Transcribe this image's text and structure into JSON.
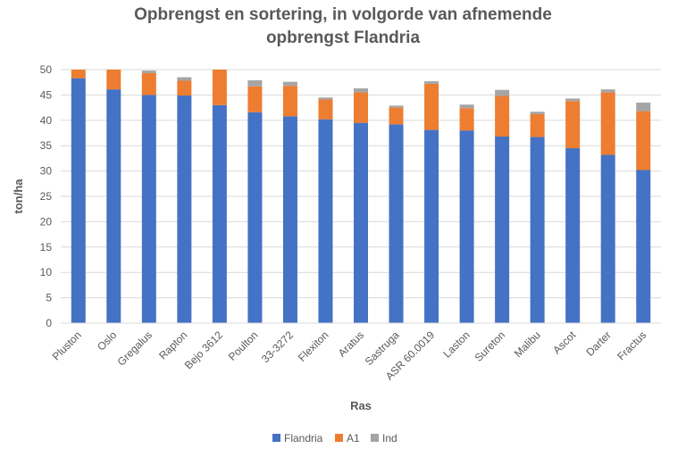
{
  "chart_data": {
    "type": "bar",
    "stacked": true,
    "title_lines": [
      "Opbrengst en sortering, in volgorde van afnemende",
      "opbrengst Flandria"
    ],
    "xlabel": "Ras",
    "ylabel": "ton/ha",
    "ylim": [
      0,
      50
    ],
    "yticks": [
      0,
      5,
      10,
      15,
      20,
      25,
      30,
      35,
      40,
      45,
      50
    ],
    "grid": true,
    "legend_position": "bottom",
    "categories": [
      "Pluston",
      "Oslo",
      "Gregalus",
      "Rapton",
      "Bejo 3612",
      "Poulton",
      "33-3272",
      "Flexiton",
      "Aratus",
      "Sastruga",
      "ASR 60.0019",
      "Laston",
      "Sureton",
      "Malibu",
      "Ascot",
      "Darter",
      "Fractus"
    ],
    "series": [
      {
        "name": "Flandria",
        "color": "#4472C4",
        "values": [
          48.3,
          46.1,
          45.0,
          44.9,
          43.0,
          41.6,
          40.8,
          40.2,
          39.5,
          39.2,
          38.1,
          38.0,
          36.8,
          36.7,
          34.5,
          33.2,
          30.2
        ]
      },
      {
        "name": "A1",
        "color": "#ED7D31",
        "values": [
          3.0,
          4.5,
          4.3,
          2.9,
          7.0,
          5.1,
          6.0,
          3.9,
          6.0,
          3.3,
          9.1,
          4.4,
          8.0,
          4.5,
          9.3,
          12.3,
          11.6
        ]
      },
      {
        "name": "Ind",
        "color": "#A5A5A5",
        "values": [
          0.0,
          0.0,
          0.5,
          0.7,
          0.0,
          1.2,
          0.8,
          0.4,
          0.8,
          0.4,
          0.5,
          0.7,
          1.2,
          0.5,
          0.5,
          0.6,
          1.7
        ]
      }
    ]
  }
}
